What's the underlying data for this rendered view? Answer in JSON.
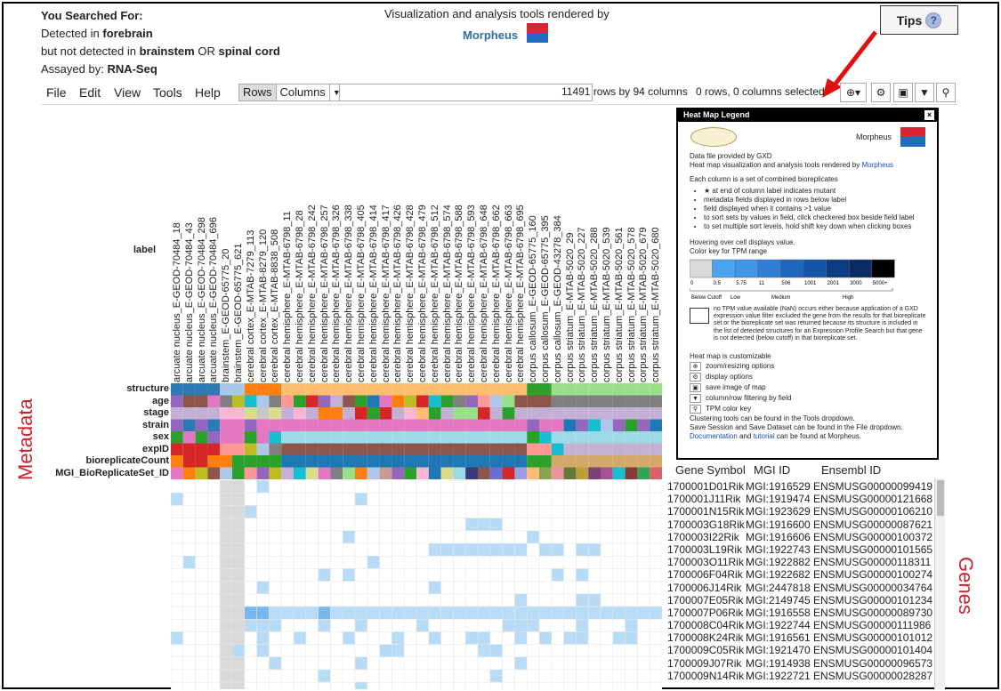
{
  "search": {
    "heading": "You Searched For:",
    "line1_prefix": "Detected in ",
    "line1_bold": "forebrain",
    "line2_prefix": "but not detected in ",
    "line2_bold1": "brainstem",
    "line2_mid": " OR ",
    "line2_bold2": "spinal cord",
    "line3_prefix": "Assayed by: ",
    "line3_bold": "RNA-Seq"
  },
  "header": {
    "vis_text": "Visualization and analysis tools rendered by",
    "morpheus": "Morpheus",
    "tips": "Tips",
    "tips_icon": "?"
  },
  "menu": [
    "File",
    "Edit",
    "View",
    "Tools",
    "Help"
  ],
  "toolbar": {
    "rows_label": "Rows",
    "columns_label": "Columns",
    "search_value": "",
    "count": "11491 rows by 94 columns",
    "selection": "0 rows, 0 columns selected",
    "zoom_icon": "⊕▾",
    "gear_icon": "⚙",
    "save_icon": "▣",
    "filter_icon": "▼",
    "key_icon": "⚲"
  },
  "label_header": "label",
  "columns": [
    "arcuate nucleus_E-GEOD-70484_18",
    "arcuate nucleus_E-GEOD-70484_43",
    "arcuate nucleus_E-GEOD-70484_298",
    "arcuate nucleus_E-GEOD-70484_696",
    "brainstem_E-GEOD-65775_20",
    "brainstem_E-GEOD-65775_621",
    "cerebral cortex_E-MTAB-7279_113",
    "cerebral cortex_E-MTAB-8279_120",
    "cerebral cortex_E-MTAB-8838_508",
    "cerebral hemisphere_E-MTAB-6798_11",
    "cerebral hemisphere_E-MTAB-6798_28",
    "cerebral hemisphere_E-MTAB-6798_242",
    "cerebral hemisphere_E-MTAB-6798_257",
    "cerebral hemisphere_E-MTAB-6798_326",
    "cerebral hemisphere_E-MTAB-6798_338",
    "cerebral hemisphere_E-MTAB-6798_405",
    "cerebral hemisphere_E-MTAB-6798_414",
    "cerebral hemisphere_E-MTAB-6798_417",
    "cerebral hemisphere_E-MTAB-6798_426",
    "cerebral hemisphere_E-MTAB-6798_428",
    "cerebral hemisphere_E-MTAB-6798_479",
    "cerebral hemisphere_E-MTAB-6798_512",
    "cerebral hemisphere_E-MTAB-6798_574",
    "cerebral hemisphere_E-MTAB-6798_588",
    "cerebral hemisphere_E-MTAB-6798_593",
    "cerebral hemisphere_E-MTAB-6798_648",
    "cerebral hemisphere_E-MTAB-6798_662",
    "cerebral hemisphere_E-MTAB-6798_663",
    "cerebral hemisphere_E-MTAB-6798_695",
    "corpus callosum_E-GEOD-65775_160",
    "corpus callosum_E-GEOD-65775_395",
    "corpus callosum_E-GEOD-43278_384",
    "corpus striatum_E-MTAB-5020_29",
    "corpus striatum_E-MTAB-5020_227",
    "corpus striatum_E-MTAB-5020_288",
    "corpus striatum_E-MTAB-5020_539",
    "corpus striatum_E-MTAB-5020_561",
    "corpus striatum_E-MTAB-5020_578",
    "corpus striatum_E-MTAB-5020_679",
    "corpus striatum_E-MTAB-5020_680"
  ],
  "metadata_rows": [
    "structure",
    "age",
    "stage",
    "strain",
    "sex",
    "expID",
    "bioreplicateCount",
    "MGI_BioReplicateSet_ID"
  ],
  "metadata_side_label": "Metadata",
  "genes_side_label": "Genes",
  "legend": {
    "title": "Heat Map Legend",
    "close": "×",
    "morpheus": "Morpheus",
    "gxd_logo": "Gene eXpression Database",
    "l1": "Data file provided by GXD",
    "l2_prefix": "Heat map visualization and analysis tools rendered by ",
    "l2_link": "Morpheus",
    "each_col": "Each column is a set of combined bioreplicates",
    "bullets": [
      "★ at end of column label indicates mutant",
      "metadata fields displayed in rows below label",
      "field displayed when it contains >1 value",
      "to sort sets by values in field, click checkered box beside field label",
      "to set multiple sort levels, hold shift key down when clicking boxes"
    ],
    "hovering": "Hovering over cell displays value.",
    "color_key": "Color key for TPM range",
    "ticks": [
      "0",
      "0.5",
      "5.75",
      "11",
      "506",
      "1001",
      "2001",
      "3000",
      "5000+"
    ],
    "levels": [
      "Below Cutoff",
      "Low",
      "Medium",
      "High"
    ],
    "nan_text": "no TPM value available (NaN) occurs either because application of a GXD expression value filter excluded the gene from the results for that bioreplicate set or the bioreplicate set was returned because its structure is included in the list of detected structures for an Expression Profile Search but that gene is not detected (below cutoff) in that bioreplicate set.",
    "customizable": "Heat map is customizable",
    "opts": [
      "zoom/resizing options",
      "display options",
      "save image of map",
      "column/row filtering by field",
      "TPM color key"
    ],
    "clustering": "Clustering tools can be found in the Tools dropdown.",
    "save_session": "Save Session and Save Dataset can be found in the File dropdown.",
    "doc_link": "Documentation",
    "and_text": " and ",
    "tut_link": "tutorial",
    "found_at": " can be found at Morpheus."
  },
  "gene_table": {
    "headers": [
      "Gene Symbol",
      "MGI ID",
      "Ensembl ID"
    ],
    "rows": [
      [
        "1700001D01Rik",
        "MGI:1916529",
        "ENSMUSG00000099419"
      ],
      [
        "1700001J11Rik",
        "MGI:1919474",
        "ENSMUSG00000121668"
      ],
      [
        "1700001N15Rik",
        "MGI:1923629",
        "ENSMUSG00000106210"
      ],
      [
        "1700003G18Rik",
        "MGI:1916600",
        "ENSMUSG00000087621"
      ],
      [
        "1700003I22Rik",
        "MGI:1916606",
        "ENSMUSG00000100372"
      ],
      [
        "1700003L19Rik",
        "MGI:1922743",
        "ENSMUSG00000101565"
      ],
      [
        "1700003O11Rik",
        "MGI:1922882",
        "ENSMUSG00000118311"
      ],
      [
        "1700006F04Rik",
        "MGI:1922682",
        "ENSMUSG00000100274"
      ],
      [
        "1700006J14Rik",
        "MGI:2447818",
        "ENSMUSG00000034764"
      ],
      [
        "1700007E05Rik",
        "MGI:2149745",
        "ENSMUSG00000101234"
      ],
      [
        "1700007P06Rik",
        "MGI:1916558",
        "ENSMUSG00000089730"
      ],
      [
        "1700008C04Rik",
        "MGI:1922744",
        "ENSMUSG00000111986"
      ],
      [
        "1700008K24Rik",
        "MGI:1916561",
        "ENSMUSG00000101012"
      ],
      [
        "1700009C05Rik",
        "MGI:1921470",
        "ENSMUSG00000101404"
      ],
      [
        "1700009J07Rik",
        "MGI:1914938",
        "ENSMUSG00000096573"
      ],
      [
        "1700009N14Rik",
        "MGI:1922721",
        "ENSMUSG00000028287"
      ]
    ]
  },
  "colors": {
    "red": "#d92534",
    "blue": "#1f6bbf",
    "heat_light": "#b9dcf6",
    "heat_mid": "#77b8ec",
    "nan": "#d9d9d9"
  }
}
